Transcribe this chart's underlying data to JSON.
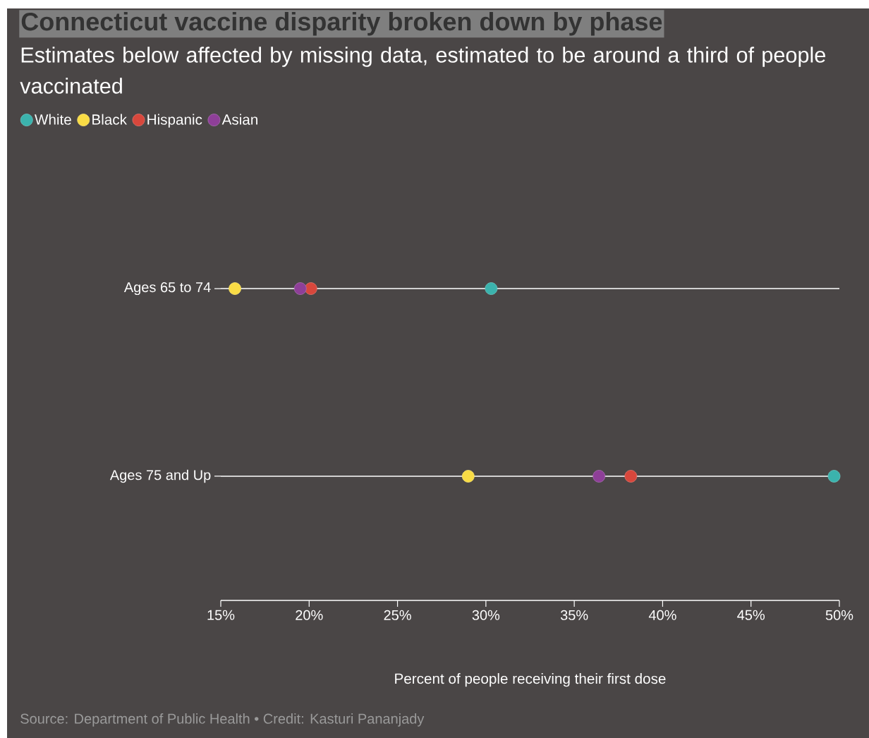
{
  "chart_data": {
    "type": "scatter",
    "orientation": "horizontal",
    "title": "Connecticut vaccine disparity broken down by phase",
    "subtitle": "Estimates below affected by missing data, estimated to be around a third of people vaccinated",
    "xlabel": "Percent of people receiving their first dose",
    "annotations": [
      "Source: Department of Public Health • Credit: Kasturi Pananjady"
    ],
    "categories": [
      "Ages 65 to 74",
      "Ages 75 and Up"
    ],
    "series": [
      {
        "name": "White",
        "color": "#3bb3ad",
        "values": [
          30.3,
          49.7
        ]
      },
      {
        "name": "Black",
        "color": "#f9dc45",
        "values": [
          15.8,
          29.0
        ]
      },
      {
        "name": "Hispanic",
        "color": "#d8473c",
        "values": [
          20.1,
          38.2
        ]
      },
      {
        "name": "Asian",
        "color": "#8e3f98",
        "values": [
          19.5,
          36.4
        ]
      }
    ],
    "xlim": [
      15,
      50
    ],
    "xticks": [
      {
        "value": 15,
        "label": "15%"
      },
      {
        "value": 20,
        "label": "20%"
      },
      {
        "value": 25,
        "label": "25%"
      },
      {
        "value": 30,
        "label": "30%"
      },
      {
        "value": 35,
        "label": "35%"
      },
      {
        "value": 40,
        "label": "40%"
      },
      {
        "value": 45,
        "label": "45%"
      },
      {
        "value": 50,
        "label": "50%"
      }
    ],
    "grid": "y",
    "legend": "top left",
    "marker": "circle"
  }
}
